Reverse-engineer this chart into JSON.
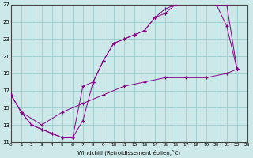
{
  "xlabel": "Windchill (Refroidissement éolien,°C)",
  "xlim": [
    0,
    23
  ],
  "ylim": [
    11,
    27
  ],
  "xticks": [
    0,
    1,
    2,
    3,
    4,
    5,
    6,
    7,
    8,
    9,
    10,
    11,
    12,
    13,
    14,
    15,
    16,
    17,
    18,
    19,
    20,
    21,
    22,
    23
  ],
  "yticks": [
    11,
    13,
    15,
    17,
    19,
    21,
    23,
    25,
    27
  ],
  "bg_color": "#cce8e8",
  "line_color": "#880088",
  "grid_color": "#99cccc",
  "line1_x": [
    0,
    1,
    2,
    3,
    4,
    5,
    6,
    7,
    8,
    9,
    10,
    11,
    12,
    13,
    14,
    15,
    16,
    17,
    18,
    20,
    21,
    22
  ],
  "line1_y": [
    16.5,
    14.5,
    13.0,
    12.5,
    12.0,
    11.5,
    11.5,
    13.5,
    18.0,
    20.5,
    22.5,
    23.0,
    23.5,
    24.0,
    25.5,
    26.0,
    27.0,
    27.5,
    27.5,
    27.0,
    27.0,
    19.5
  ],
  "line2_x": [
    0,
    1,
    2,
    3,
    4,
    5,
    6,
    7,
    8,
    9,
    10,
    11,
    12,
    13,
    14,
    15,
    16,
    17,
    18,
    19,
    20,
    21,
    22
  ],
  "line2_y": [
    16.5,
    14.5,
    13.0,
    12.5,
    12.0,
    11.5,
    11.5,
    17.5,
    18.0,
    20.5,
    22.5,
    23.0,
    23.5,
    24.0,
    25.5,
    26.5,
    27.0,
    27.5,
    27.5,
    27.5,
    27.0,
    24.5,
    19.5
  ],
  "line3_x": [
    0,
    1,
    3,
    5,
    7,
    9,
    11,
    13,
    15,
    17,
    19,
    21,
    22
  ],
  "line3_y": [
    16.5,
    14.5,
    13.0,
    14.5,
    15.5,
    16.5,
    17.5,
    18.0,
    18.5,
    18.5,
    18.5,
    19.0,
    19.5
  ]
}
